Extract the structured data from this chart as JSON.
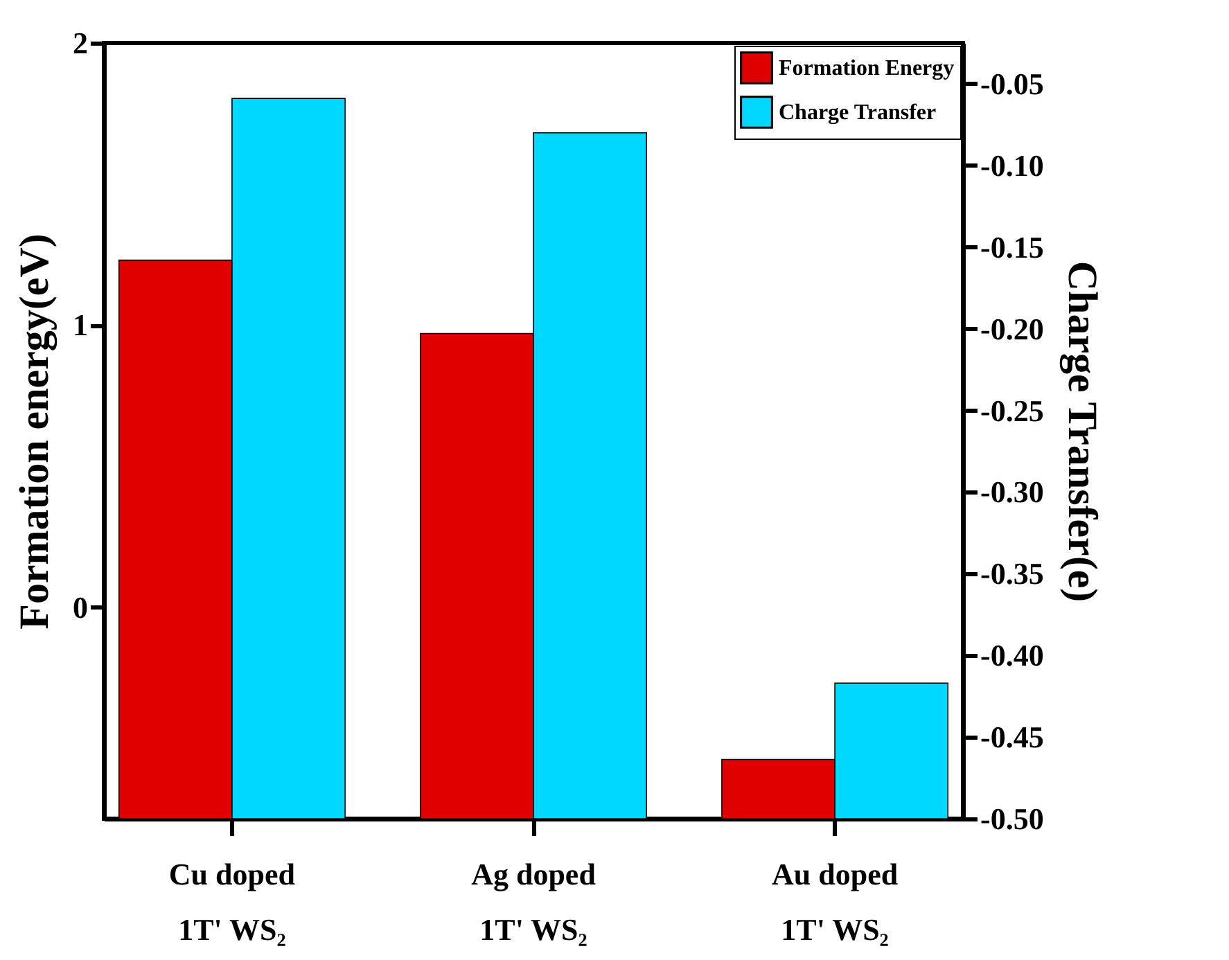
{
  "chart_data": {
    "type": "bar",
    "categories": [
      "Cu doped\n1T' WS₂",
      "Ag doped\n1T' WS₂",
      "Au doped\n1T' WS₂"
    ],
    "ylabel": "Formation energy(eV)",
    "y2label": "Charge Transfer(e)",
    "ylim": [
      -0.75,
      2
    ],
    "yticks": [
      0,
      1,
      2
    ],
    "y2lim": [
      -0.5,
      -0.025
    ],
    "y2ticks": [
      {
        "value": -0.5,
        "label": "-0.50"
      },
      {
        "value": -0.45,
        "label": "-0.45"
      },
      {
        "value": -0.4,
        "label": "-0.40"
      },
      {
        "value": -0.35,
        "label": "-0.35"
      },
      {
        "value": -0.3,
        "label": "-0.30"
      },
      {
        "value": -0.25,
        "label": "-0.25"
      },
      {
        "value": -0.2,
        "label": "-0.20"
      },
      {
        "value": -0.15,
        "label": "-0.15"
      },
      {
        "value": -0.1,
        "label": "-0.10"
      },
      {
        "value": -0.05,
        "label": "-0.05"
      }
    ],
    "series": [
      {
        "name": "Formation Energy",
        "color": "#e00000",
        "base": [
          -0.75,
          -0.75,
          -0.75
        ],
        "values": [
          1.98,
          1.72,
          0.21
        ]
      },
      {
        "name": "Charge Transfer",
        "color": "#00d8ff",
        "axis": "y2",
        "base": [
          -0.5,
          -0.5,
          -0.5
        ],
        "values": [
          0.441,
          0.42,
          0.083
        ]
      }
    ],
    "legend": "top right",
    "grid": false
  }
}
